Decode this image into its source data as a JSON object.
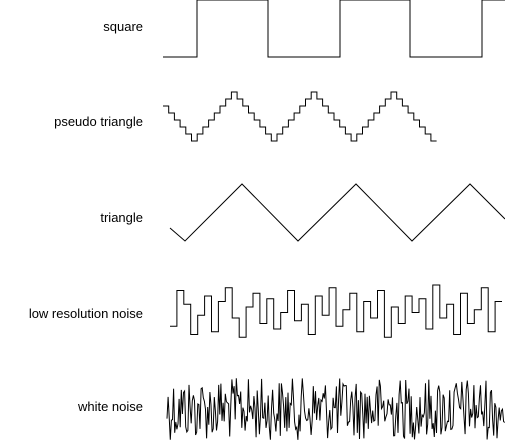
{
  "waveforms": [
    {
      "id": "square",
      "label": "square"
    },
    {
      "id": "pseudo-triangle",
      "label": "pseudo triangle"
    },
    {
      "id": "triangle",
      "label": "triangle"
    },
    {
      "id": "low-resolution-noise",
      "label": "low resolution noise"
    },
    {
      "id": "white-noise",
      "label": "white noise"
    }
  ],
  "colors": {
    "background": "#ffffff",
    "stroke": "#000000"
  }
}
